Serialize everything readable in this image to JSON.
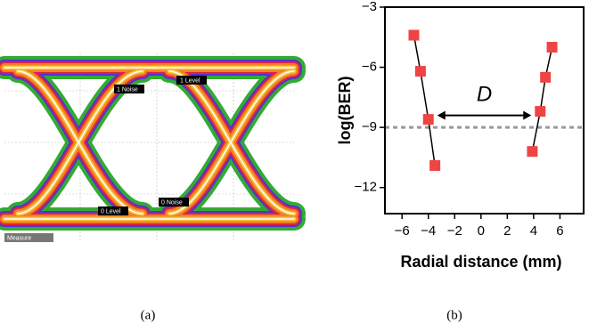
{
  "panel_a": {
    "labels": [
      "1 Level",
      "1 Noise",
      "0 Level",
      "0 Noise"
    ],
    "tab": "Measure",
    "caption": "(a)"
  },
  "caption_b": "(b)",
  "chart_data": {
    "type": "line",
    "xlabel": "Radial distance (mm)",
    "ylabel": "log(BER)",
    "annotation": "D",
    "series": [
      {
        "color": "#ee4444",
        "x": [
          -5.1,
          -4.6,
          -4.0,
          -3.5
        ],
        "values": [
          -4.4,
          -6.2,
          -8.6,
          -10.9
        ]
      },
      {
        "color": "#ee4444",
        "x": [
          5.4,
          4.9,
          4.5,
          3.9
        ],
        "values": [
          -5.0,
          -6.5,
          -8.2,
          -10.2
        ]
      }
    ],
    "hline": -9,
    "hline_color": "#999999",
    "xlim": [
      -7.3,
      7.8
    ],
    "ylim": [
      -13.3,
      -3
    ],
    "xticks": [
      {
        "value": -6,
        "label": "−6"
      },
      {
        "value": -4,
        "label": "−4"
      },
      {
        "value": -2,
        "label": "−2"
      },
      0,
      2,
      4,
      6
    ],
    "yticks": [
      {
        "value": -3,
        "label": "−3"
      },
      {
        "value": -6,
        "label": "−6"
      },
      {
        "value": -9,
        "label": "−9"
      },
      {
        "value": -12,
        "label": "−12"
      }
    ]
  }
}
